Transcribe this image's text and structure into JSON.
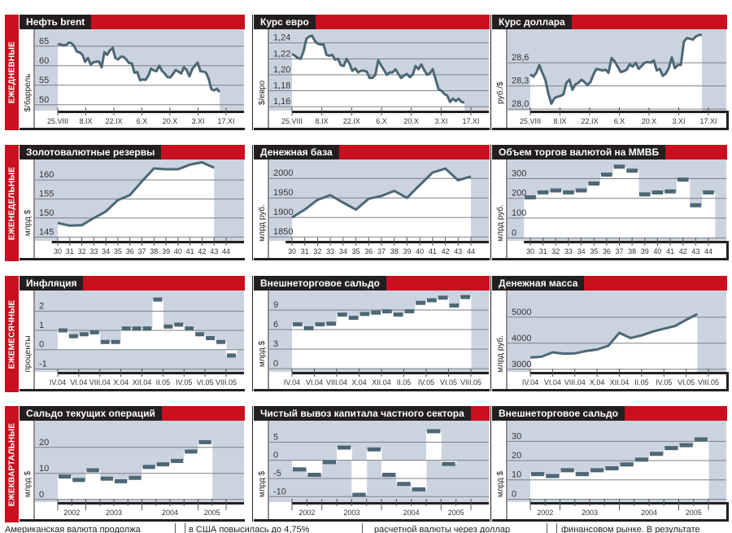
{
  "rows": [
    {
      "label": "ЕЖЕДНЕВНЫЕ"
    },
    {
      "label": "ЕЖЕНЕДЕЛЬНЫЕ"
    },
    {
      "label": "ЕЖЕМЕСЯЧНЫЕ"
    },
    {
      "label": "ЕЖЕКВАРТАЛЬНЫЕ"
    }
  ],
  "colors": {
    "red": "#c8101e",
    "black": "#231f20",
    "plot_bg": "#ccd3e0",
    "line": "#4d6775",
    "grid": "#7a8088"
  },
  "footer": [
    "Американская валюта продолжа",
    "в США повысилась до 4,75%",
    "расчетной валюты через доллар",
    "финансовом рынке. В результате"
  ],
  "chart_data": [
    {
      "id": "brent",
      "type": "line",
      "title": "Нефть brent",
      "ylabel": "$/баррель",
      "ylim": [
        48.5,
        68.5
      ],
      "yticks": [
        50,
        55,
        60,
        65
      ],
      "ytick_labels": [
        "50",
        "55",
        "60",
        "65"
      ],
      "xticks": [
        "25.VIII",
        "8.IX",
        "22.IX",
        "6.X",
        "20.X",
        "3.XI",
        "17.XI"
      ],
      "xn": 85,
      "values": [
        65.5,
        65.5,
        65.2,
        65.3,
        65.9,
        65.8,
        65.0,
        63.6,
        63.4,
        62.8,
        61.0,
        62.0,
        60.3,
        60.9,
        61.0,
        61.1,
        59.6,
        63.5,
        62.8,
        63.9,
        64.6,
        62.0,
        61.6,
        62.3,
        62.3,
        61.6,
        60.7,
        60.6,
        58.2,
        58.4,
        56.3,
        56.5,
        56.4,
        57.4,
        59.3,
        58.8,
        58.6,
        60.0,
        58.7,
        58.0,
        57.1,
        57.0,
        57.9,
        58.9,
        58.5,
        58.0,
        59.6,
        58.9,
        57.3,
        59.1,
        60.0,
        60.8,
        58.6,
        58.5,
        58.3,
        56.7,
        54.0,
        53.7,
        54.1,
        53.3
      ]
    },
    {
      "id": "euro",
      "type": "line",
      "title": "Курс евро",
      "ylabel": "$/евро",
      "ylim": [
        1.155,
        1.253
      ],
      "yticks": [
        1.16,
        1.18,
        1.2,
        1.22,
        1.24
      ],
      "ytick_labels": [
        "1,16",
        "1,18",
        "1,20",
        "1,22",
        "1,24"
      ],
      "xticks": [
        "25.VIII",
        "8.IX",
        "22.IX",
        "6.X",
        "20.X",
        "3.XI",
        "17.XI"
      ],
      "xn": 85,
      "values": [
        1.226,
        1.224,
        1.221,
        1.22,
        1.229,
        1.245,
        1.248,
        1.249,
        1.242,
        1.239,
        1.238,
        1.238,
        1.225,
        1.224,
        1.225,
        1.219,
        1.22,
        1.212,
        1.211,
        1.22,
        1.214,
        1.205,
        1.208,
        1.203,
        1.205,
        1.205,
        1.204,
        1.196,
        1.196,
        1.2,
        1.218,
        1.212,
        1.206,
        1.2,
        1.203,
        1.203,
        1.207,
        1.201,
        1.196,
        1.199,
        1.201,
        1.197,
        1.2,
        1.211,
        1.207,
        1.213,
        1.206,
        1.2,
        1.202,
        1.207,
        1.194,
        1.182,
        1.18,
        1.176,
        1.174,
        1.166,
        1.17,
        1.167,
        1.17,
        1.166,
        1.165
      ]
    },
    {
      "id": "dollar",
      "type": "line",
      "title": "Курс доллара",
      "ylabel": "руб./$",
      "ylim": [
        27.98,
        28.99
      ],
      "yticks": [
        28.0,
        28.3,
        28.6
      ],
      "ytick_labels": [
        "28,0",
        "28,3",
        "28,6"
      ],
      "xticks": [
        "25.VIII",
        "8.IX",
        "22.IX",
        "6.X",
        "20.X",
        "3.XI",
        "17.XI"
      ],
      "xn": 85,
      "values": [
        28.45,
        28.42,
        28.47,
        28.57,
        28.47,
        28.38,
        28.2,
        28.07,
        28.14,
        28.16,
        28.17,
        28.19,
        28.34,
        28.38,
        28.25,
        28.32,
        28.34,
        28.38,
        28.35,
        28.31,
        28.35,
        28.45,
        28.52,
        28.51,
        28.5,
        28.51,
        28.47,
        28.66,
        28.62,
        28.55,
        28.48,
        28.49,
        28.51,
        28.58,
        28.55,
        28.6,
        28.52,
        28.56,
        28.6,
        28.61,
        28.6,
        28.63,
        28.5,
        28.52,
        28.43,
        28.46,
        28.53,
        28.67,
        28.53,
        28.57,
        28.57,
        28.87,
        28.92,
        28.91,
        28.9,
        28.94,
        28.96,
        28.96
      ]
    },
    {
      "id": "reserves",
      "type": "line",
      "title": "Золотовалютные резервы",
      "ylabel": "млрд $",
      "ylim": [
        144,
        164.5
      ],
      "yticks": [
        145,
        150,
        155,
        160
      ],
      "ytick_labels": [
        "145",
        "150",
        "155",
        "160"
      ],
      "x": [
        "30",
        "31",
        "32",
        "33",
        "34",
        "35",
        "36",
        "37",
        "38",
        "39",
        "40",
        "41",
        "42",
        "43",
        "44"
      ],
      "values": [
        148.7,
        148.0,
        148.1,
        150.0,
        151.7,
        154.7,
        156.0,
        159.6,
        163.0,
        162.8,
        162.8,
        164.0,
        164.6,
        163.2,
        null
      ]
    },
    {
      "id": "money_base",
      "type": "line",
      "title": "Денежная база",
      "ylabel": "млрд руб.",
      "ylim": [
        1840,
        2040
      ],
      "yticks": [
        1850,
        1900,
        1950,
        2000
      ],
      "ytick_labels": [
        "1850",
        "1900",
        "1950",
        "2000"
      ],
      "x": [
        "30",
        "31",
        "32",
        "33",
        "34",
        "35",
        "36",
        "37",
        "38",
        "39",
        "40",
        "41",
        "42",
        "43",
        "44"
      ],
      "values": [
        1900,
        1920,
        1945,
        1957,
        1938,
        1920,
        1948,
        1955,
        1968,
        1950,
        1983,
        2015,
        2025,
        1995,
        2005
      ]
    },
    {
      "id": "mmvb",
      "type": "step",
      "title": "Объем торгов валютой на ММВБ",
      "ylabel": "млрд руб.",
      "ylim": [
        -15,
        380
      ],
      "yticks": [
        0,
        100,
        200,
        300
      ],
      "ytick_labels": [
        "0",
        "100",
        "200",
        "300"
      ],
      "x": [
        "30",
        "31",
        "32",
        "33",
        "34",
        "35",
        "36",
        "37",
        "38",
        "39",
        "40",
        "41",
        "42",
        "43",
        "44"
      ],
      "values": [
        205,
        230,
        240,
        230,
        240,
        275,
        320,
        360,
        340,
        220,
        230,
        235,
        295,
        165,
        230
      ]
    },
    {
      "id": "inflation",
      "type": "step",
      "title": "Инфляция",
      "ylabel": "проценты",
      "ylim": [
        -1.15,
        2.9
      ],
      "yticks": [
        -1,
        0,
        1,
        2
      ],
      "ytick_labels": [
        "-1",
        "0",
        "1",
        "2"
      ],
      "xticks": [
        "IV.04",
        "VI.04",
        "VIII.04",
        "X.04",
        "XII.04",
        "II.05",
        "IV.05",
        "VI.05",
        "VIII.05"
      ],
      "x_months": 17,
      "values": [
        1.0,
        0.7,
        0.8,
        0.9,
        0.4,
        0.4,
        1.1,
        1.1,
        1.1,
        2.6,
        1.2,
        1.3,
        1.1,
        0.8,
        0.6,
        0.4,
        -0.3
      ]
    },
    {
      "id": "trade_monthly",
      "type": "step",
      "title": "Внешнеторговое сальдо",
      "ylabel": "млрд $",
      "ylim": [
        -0.5,
        11.5
      ],
      "yticks": [
        0,
        3,
        6,
        9
      ],
      "ytick_labels": [
        "0",
        "3",
        "6",
        "9"
      ],
      "xticks": [
        "IV.04",
        "VI.04",
        "VIII.04",
        "X.04",
        "XII.04",
        "II.05",
        "IV.05",
        "VI.05",
        "VIII.05"
      ],
      "x_months": 17,
      "values": [
        6.8,
        6.2,
        6.8,
        6.9,
        8.3,
        7.8,
        8.4,
        8.6,
        8.8,
        8.3,
        8.8,
        10.1,
        10.5,
        10.9,
        9.7,
        11.0
      ]
    },
    {
      "id": "money_supply",
      "type": "line",
      "title": "Денежная масса",
      "ylabel": "млрд руб.",
      "ylim": [
        2900,
        5900
      ],
      "yticks": [
        3000,
        4000,
        5000
      ],
      "ytick_labels": [
        "3000",
        "4000",
        "5000"
      ],
      "xticks": [
        "IV.04",
        "VI.04",
        "VIII.04",
        "X.04",
        "XII.04",
        "II.05",
        "IV.05",
        "VI.05",
        "VIII.05"
      ],
      "x_months": 17,
      "values": [
        3450,
        3480,
        3650,
        3600,
        3610,
        3700,
        3760,
        3900,
        4400,
        4200,
        4300,
        4450,
        4560,
        4660,
        4900,
        5120
      ]
    },
    {
      "id": "current_account",
      "type": "step",
      "title": "Сальдо текущих операций",
      "ylabel": "млрд $",
      "ylim": [
        -1,
        29
      ],
      "yticks": [
        0,
        10,
        20
      ],
      "ytick_labels": [
        "0",
        "10",
        "20"
      ],
      "xticks": [
        "2002",
        "2003",
        "2004",
        "2005"
      ],
      "quarters": 13,
      "values": [
        8.8,
        7.5,
        11.2,
        8.0,
        7.0,
        8.3,
        12.5,
        13.5,
        14.8,
        18.4,
        22.0
      ]
    },
    {
      "id": "capital_outflow",
      "type": "step",
      "title": "Чистый вывоз капитала частного сектора",
      "ylabel": "млрд $",
      "ylim": [
        -11.5,
        10
      ],
      "yticks": [
        -10,
        -5,
        0,
        5
      ],
      "ytick_labels": [
        "-10",
        "-5",
        "0",
        "5"
      ],
      "xticks": [
        "2002",
        "2003",
        "2004",
        "2005"
      ],
      "quarters": 13,
      "values": [
        -2.5,
        -4.0,
        -0.5,
        3.5,
        -9.5,
        3.0,
        -4.0,
        -6.5,
        -8.0,
        8.0,
        -1.0
      ]
    },
    {
      "id": "trade_quarterly",
      "type": "step",
      "title": "Внешнеторговое сальдо",
      "ylabel": "млрд $",
      "ylim": [
        -1.5,
        39
      ],
      "yticks": [
        0,
        10,
        20,
        30
      ],
      "ytick_labels": [
        "0",
        "10",
        "20",
        "30"
      ],
      "xticks": [
        "2002",
        "2003",
        "2004",
        "2005"
      ],
      "quarters": 13,
      "values": [
        13.0,
        12.0,
        15.0,
        13.0,
        15.0,
        16.0,
        18.0,
        20.5,
        23.5,
        26.5,
        28.0,
        31.0
      ]
    }
  ]
}
